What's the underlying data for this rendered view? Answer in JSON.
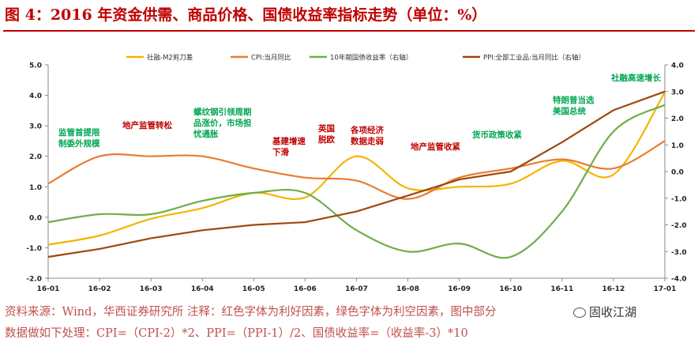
{
  "page": {
    "title": "图 4：2016 年资金供需、商品价格、国债收益率指标走势（单位：%）",
    "footnote_line1": "资料来源：Wind，华西证券研究所 注释：红色字体为利好因素，绿色字体为利空因素，图中部分",
    "footnote_line2": "数据做如下处理：CPI=（CPI-2）*2、PPI=（PPI-1）/2、国债收益率=（收益率-3）*10",
    "watermark": "固收江湖"
  },
  "colors": {
    "series_1": "#f4b400",
    "series_2": "#e97c30",
    "series_3": "#70ad47",
    "series_4": "#9e480e",
    "favorable": "#c00000",
    "unfavorable": "#00a651",
    "title": "#c00000"
  },
  "chart_data": {
    "type": "line",
    "x_labels": [
      "16-01",
      "16-02",
      "16-03",
      "16-04",
      "16-05",
      "16-06",
      "16-07",
      "16-08",
      "16-09",
      "16-10",
      "16-11",
      "16-12",
      "17-01"
    ],
    "y_left": {
      "min": -2.0,
      "max": 5.0,
      "step": 1.0,
      "ticks": [
        "-2.0",
        "-1.0",
        "0.0",
        "1.0",
        "2.0",
        "3.0",
        "4.0",
        "5.0"
      ]
    },
    "y_right": {
      "min": -4.0,
      "max": 4.0,
      "step": 1.0,
      "ticks": [
        "-4.0",
        "-3.0",
        "-2.0",
        "-1.0",
        "0.0",
        "1.0",
        "2.0",
        "3.0",
        "4.0"
      ]
    },
    "grid": false,
    "legend_position": "top",
    "series": [
      {
        "name": "社融-M2剪刀差",
        "axis": "left",
        "color": "#f4b400",
        "values": [
          -0.9,
          -0.6,
          -0.05,
          0.3,
          0.8,
          0.65,
          2.0,
          0.95,
          1.0,
          1.1,
          1.85,
          1.4,
          4.1
        ]
      },
      {
        "name": "CPI:当月同比",
        "axis": "left",
        "color": "#e97c30",
        "values": [
          1.1,
          2.0,
          2.0,
          2.0,
          1.6,
          1.3,
          1.2,
          0.6,
          1.3,
          1.6,
          1.9,
          1.6,
          2.5
        ]
      },
      {
        "name": "10年期国债收益率（右轴）",
        "axis": "right",
        "color": "#70ad47",
        "values": [
          -1.9,
          -1.6,
          -1.6,
          -1.1,
          -0.8,
          -0.8,
          -2.2,
          -3.0,
          -2.7,
          -3.2,
          -1.5,
          1.5,
          2.5
        ]
      },
      {
        "name": "PPI:全部工业品:当月同比（右轴）",
        "axis": "right",
        "color": "#9e480e",
        "values": [
          -3.2,
          -2.9,
          -2.5,
          -2.2,
          -2.0,
          -1.9,
          -1.5,
          -0.9,
          -0.3,
          0.0,
          1.1,
          2.3,
          3.0
        ]
      }
    ],
    "annotations": [
      {
        "text": "监管首提限制委外规模",
        "color": "unfavorable"
      },
      {
        "text": "地产监管转松",
        "color": "favorable"
      },
      {
        "text": "螺纹钢引领周期品涨价，市场担忧通胀",
        "color": "unfavorable"
      },
      {
        "text": "基建增速下滑",
        "color": "favorable"
      },
      {
        "text": "英国脱欧",
        "color": "favorable"
      },
      {
        "text": "各项经济数据走弱",
        "color": "favorable"
      },
      {
        "text": "地产监管收紧",
        "color": "favorable"
      },
      {
        "text": "货币政策收紧",
        "color": "unfavorable"
      },
      {
        "text": "特朗普当选美国总统",
        "color": "unfavorable"
      },
      {
        "text": "社融高速增长",
        "color": "unfavorable"
      }
    ]
  }
}
